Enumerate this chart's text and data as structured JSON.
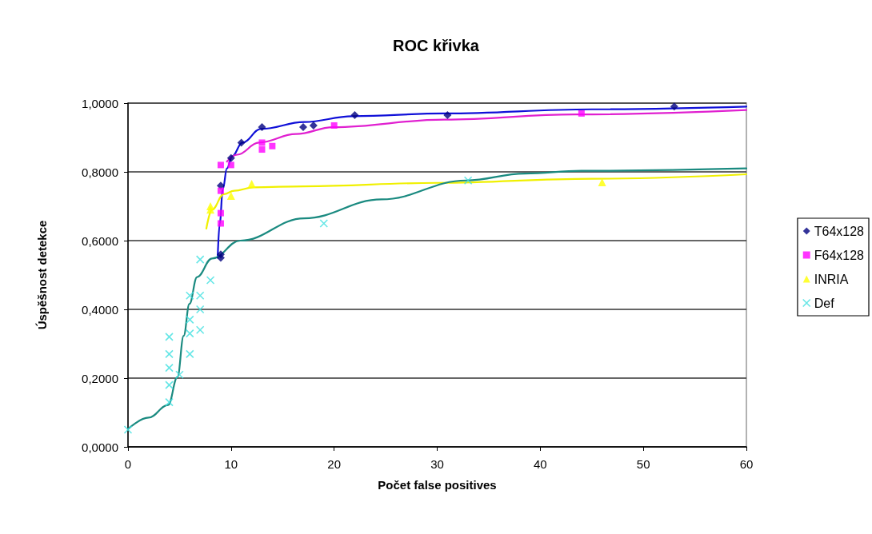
{
  "chart_data": {
    "type": "scatter",
    "title": "ROC křivka",
    "xlabel": "Počet false positives",
    "ylabel": "Úspěšnost detekce",
    "xlim": [
      0,
      60
    ],
    "xticks": [
      0,
      10,
      20,
      30,
      40,
      50,
      60
    ],
    "ylim": [
      0,
      1
    ],
    "yticks": [
      {
        "value": 0,
        "label": "0,0000"
      },
      {
        "value": 0.2,
        "label": "0,2000"
      },
      {
        "value": 0.4,
        "label": "0,4000"
      },
      {
        "value": 0.6,
        "label": "0,6000"
      },
      {
        "value": 0.8,
        "label": "0,8000"
      },
      {
        "value": 1,
        "label": "1,0000"
      }
    ],
    "grid": "y",
    "legend": "right",
    "series": [
      {
        "type": "line",
        "color": "#1010d8",
        "marker": "none",
        "x": [
          8.7,
          8.9,
          9.2,
          9.6,
          10.1,
          11.1,
          12.9,
          17.1,
          21.8,
          30.7,
          45,
          60
        ],
        "values": [
          0.55,
          0.65,
          0.75,
          0.81,
          0.845,
          0.885,
          0.925,
          0.945,
          0.962,
          0.97,
          0.982,
          0.99
        ]
      },
      {
        "type": "line",
        "color": "#e020d0",
        "marker": "none",
        "x": [
          9.6,
          10.6,
          12.7,
          16.3,
          19.9,
          30.7,
          43.4,
          60
        ],
        "values": [
          0.83,
          0.85,
          0.885,
          0.91,
          0.93,
          0.952,
          0.967,
          0.98
        ]
      },
      {
        "type": "line",
        "color": "#f0f000",
        "marker": "none",
        "x": [
          7.6,
          8.15,
          9.3,
          10.3,
          12.2,
          17.1,
          30,
          45,
          60
        ],
        "values": [
          0.635,
          0.69,
          0.735,
          0.745,
          0.755,
          0.758,
          0.768,
          0.78,
          0.793
        ]
      },
      {
        "type": "line",
        "color": "#1a8a80",
        "marker": "none",
        "x": [
          0,
          2,
          3.9,
          4.8,
          5.4,
          5.96,
          6.7,
          8.15,
          10.9,
          17.1,
          24.6,
          32.8,
          38.5,
          44,
          60
        ],
        "values": [
          0.052,
          0.085,
          0.122,
          0.203,
          0.323,
          0.416,
          0.494,
          0.548,
          0.6,
          0.665,
          0.72,
          0.775,
          0.795,
          0.803,
          0.81
        ]
      },
      {
        "name": "T64x128",
        "color": "#000080",
        "marker": "diamond",
        "x": [
          9,
          9,
          9,
          10,
          11,
          13,
          17,
          18,
          22,
          31,
          53
        ],
        "values": [
          0.55,
          0.56,
          0.76,
          0.84,
          0.885,
          0.93,
          0.93,
          0.935,
          0.965,
          0.965,
          0.99
        ]
      },
      {
        "name": "F64x128",
        "color": "#ff00ff",
        "marker": "square",
        "x": [
          9,
          10,
          9,
          9,
          9,
          13,
          13,
          14,
          20,
          44
        ],
        "values": [
          0.82,
          0.82,
          0.745,
          0.68,
          0.65,
          0.885,
          0.865,
          0.875,
          0.935,
          0.97
        ]
      },
      {
        "name": "INRIA",
        "color": "#ffff00",
        "marker": "triangle",
        "x": [
          8,
          8,
          10,
          12,
          46
        ],
        "values": [
          0.7,
          0.69,
          0.73,
          0.765,
          0.77
        ]
      },
      {
        "name": "Def",
        "color": "#40e0e0",
        "marker": "cross",
        "x": [
          0,
          4,
          4,
          5,
          4,
          4,
          4,
          6,
          6,
          7,
          6,
          7,
          6,
          7,
          8,
          7,
          19,
          33
        ],
        "values": [
          0.05,
          0.13,
          0.18,
          0.21,
          0.23,
          0.27,
          0.32,
          0.27,
          0.33,
          0.34,
          0.37,
          0.4,
          0.44,
          0.44,
          0.485,
          0.545,
          0.65,
          0.775
        ]
      }
    ]
  }
}
